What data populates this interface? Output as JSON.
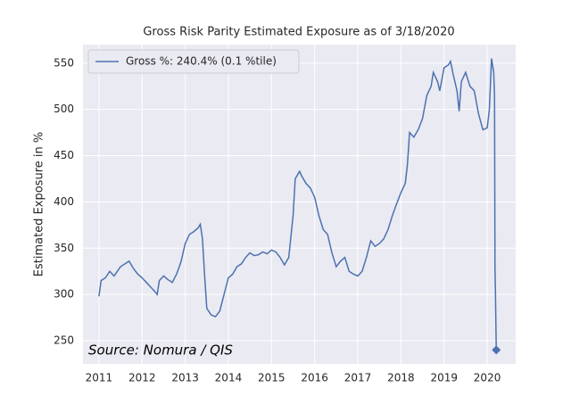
{
  "chart_data": {
    "type": "line",
    "title": "Gross Risk Parity Estimated Exposure as of 3/18/2020",
    "ylabel": "Estimated Exposure in %",
    "annotation": "Source: Nomura / QIS",
    "legend": "upper left",
    "grid": true,
    "last_marker": "diamond",
    "xlim": [
      2010.63,
      2020.66
    ],
    "xticks": [
      2011,
      2012,
      2013,
      2014,
      2015,
      2016,
      2017,
      2018,
      2019,
      2020
    ],
    "ylim": [
      225,
      570
    ],
    "yticks": [
      250,
      300,
      350,
      400,
      450,
      500,
      550
    ],
    "series": [
      {
        "name": "Gross %:  240.4% (0.1 %tile)",
        "color": "#4c72b0",
        "x": [
          2011.0,
          2011.05,
          2011.15,
          2011.25,
          2011.35,
          2011.5,
          2011.6,
          2011.7,
          2011.8,
          2011.9,
          2012.0,
          2012.1,
          2012.2,
          2012.3,
          2012.35,
          2012.4,
          2012.5,
          2012.6,
          2012.7,
          2012.8,
          2012.9,
          2013.0,
          2013.1,
          2013.2,
          2013.3,
          2013.35,
          2013.4,
          2013.45,
          2013.5,
          2013.6,
          2013.7,
          2013.8,
          2013.9,
          2014.0,
          2014.1,
          2014.2,
          2014.3,
          2014.4,
          2014.5,
          2014.6,
          2014.7,
          2014.8,
          2014.9,
          2015.0,
          2015.1,
          2015.2,
          2015.3,
          2015.4,
          2015.5,
          2015.55,
          2015.65,
          2015.7,
          2015.8,
          2015.9,
          2016.0,
          2016.1,
          2016.2,
          2016.3,
          2016.4,
          2016.5,
          2016.6,
          2016.7,
          2016.8,
          2016.9,
          2017.0,
          2017.1,
          2017.2,
          2017.3,
          2017.4,
          2017.5,
          2017.6,
          2017.7,
          2017.8,
          2017.9,
          2018.0,
          2018.1,
          2018.15,
          2018.2,
          2018.3,
          2018.4,
          2018.5,
          2018.6,
          2018.7,
          2018.75,
          2018.85,
          2018.9,
          2019.0,
          2019.1,
          2019.15,
          2019.2,
          2019.3,
          2019.35,
          2019.4,
          2019.5,
          2019.6,
          2019.7,
          2019.8,
          2019.9,
          2020.0,
          2020.05,
          2020.1,
          2020.15,
          2020.17,
          2020.18,
          2020.19,
          2020.21
        ],
        "values": [
          298,
          315,
          318,
          325,
          320,
          330,
          333,
          336,
          328,
          322,
          318,
          313,
          308,
          303,
          300,
          315,
          320,
          316,
          313,
          322,
          335,
          355,
          365,
          368,
          372,
          376,
          360,
          320,
          285,
          278,
          276,
          282,
          300,
          318,
          322,
          330,
          333,
          340,
          345,
          342,
          343,
          346,
          344,
          348,
          346,
          340,
          332,
          340,
          385,
          425,
          433,
          428,
          420,
          415,
          405,
          385,
          370,
          365,
          345,
          330,
          336,
          340,
          325,
          322,
          320,
          325,
          340,
          358,
          352,
          355,
          360,
          370,
          385,
          398,
          410,
          420,
          440,
          475,
          470,
          478,
          490,
          515,
          525,
          540,
          530,
          520,
          545,
          548,
          552,
          540,
          520,
          498,
          530,
          540,
          525,
          520,
          495,
          478,
          480,
          500,
          555,
          540,
          515,
          330,
          305,
          240
        ]
      }
    ]
  }
}
